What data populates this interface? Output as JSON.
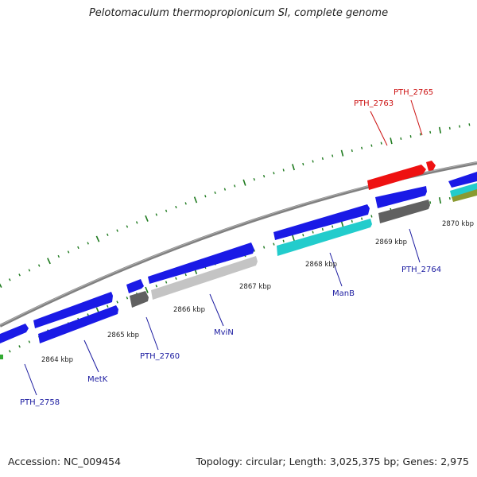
{
  "title": "Pelotomaculum thermopropionicum SI, complete genome",
  "footer": {
    "accession": "Accession: NC_009454",
    "summary": "Topology: circular; Length: 3,025,375 bp; Genes: 2,975"
  },
  "colors": {
    "background": "#ffffff",
    "backbone": "#808080",
    "tick": "#1e7a1e",
    "gene_blue": "#1a1ae6",
    "gene_red": "#ee1111",
    "gene_cyan": "#22cccc",
    "gene_darkgray": "#606060",
    "gene_lightgray": "#c4c4c4",
    "gene_olive": "#8a9a30",
    "label_blue": "#1a1aa0",
    "label_red": "#cc1111"
  },
  "scale_labels": [
    "2864 kbp",
    "2865 kbp",
    "2866 kbp",
    "2867 kbp",
    "2868 kbp",
    "2869 kbp",
    "2870 kbp"
  ],
  "gene_labels": [
    {
      "text": "PTH_2758",
      "color": "blue"
    },
    {
      "text": "MetK",
      "color": "blue"
    },
    {
      "text": "PTH_2760",
      "color": "blue"
    },
    {
      "text": "MviN",
      "color": "blue"
    },
    {
      "text": "ManB",
      "color": "blue"
    },
    {
      "text": "PTH_2764",
      "color": "blue"
    },
    {
      "text": "PTH_2763",
      "color": "red"
    },
    {
      "text": "PTH_2765",
      "color": "red"
    }
  ]
}
